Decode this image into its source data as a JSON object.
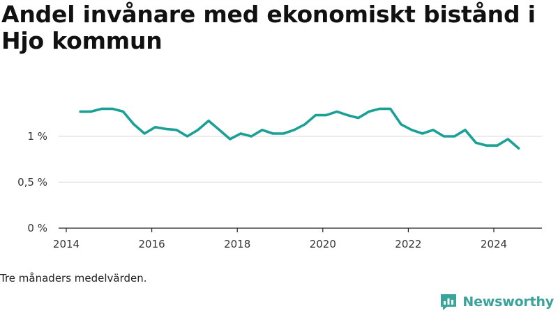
{
  "title": "Andel invånare med ekonomiskt bistånd i Hjo kommun",
  "note": "Tre månaders medelvärden.",
  "brand": {
    "name": "Newsworthy",
    "color": "#3aa39a"
  },
  "chart_data": {
    "type": "line",
    "title": "Andel invånare med ekonomiskt bistånd i Hjo kommun",
    "xlabel": "",
    "ylabel": "",
    "xlim": [
      2014,
      2025.1
    ],
    "ylim": [
      0,
      1.5
    ],
    "x_ticks": [
      2014,
      2016,
      2018,
      2020,
      2022,
      2024
    ],
    "x_tick_labels": [
      "2014",
      "2016",
      "2018",
      "2020",
      "2022",
      "2024"
    ],
    "y_ticks": [
      0,
      0.5,
      1
    ],
    "y_tick_labels": [
      "0 %",
      "0,5 %",
      "1 %"
    ],
    "grid": true,
    "line_color": "#1aa096",
    "series": [
      {
        "x": [
          2014.33,
          2014.58,
          2014.83,
          2015.08,
          2015.33,
          2015.58,
          2015.83,
          2016.08,
          2016.33,
          2016.58,
          2016.83,
          2017.08,
          2017.33,
          2017.58,
          2017.83,
          2018.08,
          2018.33,
          2018.58,
          2018.83,
          2019.08,
          2019.33,
          2019.58,
          2019.83,
          2020.08,
          2020.33,
          2020.58,
          2020.83,
          2021.08,
          2021.33,
          2021.58,
          2021.83,
          2022.08,
          2022.33,
          2022.58,
          2022.83,
          2023.08,
          2023.33,
          2023.58,
          2023.83,
          2024.08,
          2024.33,
          2024.58
        ],
        "values": [
          1.27,
          1.27,
          1.3,
          1.3,
          1.27,
          1.13,
          1.03,
          1.1,
          1.08,
          1.07,
          1.0,
          1.07,
          1.17,
          1.07,
          0.97,
          1.03,
          1.0,
          1.07,
          1.03,
          1.03,
          1.07,
          1.13,
          1.23,
          1.23,
          1.27,
          1.23,
          1.2,
          1.27,
          1.3,
          1.3,
          1.13,
          1.07,
          1.03,
          1.07,
          1.0,
          1.0,
          1.07,
          0.93,
          0.9,
          0.9,
          0.97,
          0.87
        ]
      }
    ]
  }
}
